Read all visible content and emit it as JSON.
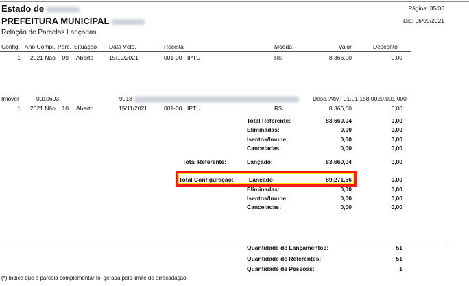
{
  "header": {
    "state_prefix": "Estado de",
    "municipality_prefix": "PREFEITURA MUNICIPAL",
    "report_title": "Relação de Parcelas Lançadas",
    "page": "Página: 35/36",
    "date": "Dia: 06/09/2021"
  },
  "columns": [
    "Config.",
    "Ano Compl.",
    "Parc.",
    "Situação",
    "Data Vcto.",
    "Receita",
    "Moeda",
    "Valor",
    "Desconto"
  ],
  "row1": {
    "config": "1",
    "ano": "2021 Não",
    "parc": "09",
    "situacao": "Aberto",
    "data": "15/10/2021",
    "receita": "001-00",
    "tributo": "IPTU",
    "moeda": "R$",
    "valor": "8.366,00",
    "desconto": "0,00"
  },
  "imovel": {
    "label": "Imóvel",
    "code": "0010603",
    "owner_code": "9918",
    "desc_ativ": "Desc.:Ativ.: 01.01.158.0020.001.000"
  },
  "row2": {
    "config": "1",
    "ano": "2021 Não",
    "parc": "10",
    "situacao": "Aberto",
    "data": "15/11/2021",
    "receita": "001-00",
    "tributo": "IPTU",
    "moeda": "R$",
    "valor": "8.366,00",
    "desconto": "0,00"
  },
  "sub": [
    {
      "label": "Total Referente:",
      "valor": "83.660,04",
      "desconto": "0,00"
    },
    {
      "label": "Eliminadas:",
      "valor": "0,00",
      "desconto": "0,00"
    },
    {
      "label": "Isentos/Imune:",
      "valor": "0,00",
      "desconto": "0,00"
    },
    {
      "label": "Canceladas:",
      "valor": "0,00",
      "desconto": "0,00"
    }
  ],
  "total_ref": {
    "label": "Total Referente:",
    "sub": "Lançado:",
    "valor": "83.660,04",
    "desconto": "0,00"
  },
  "total_config": {
    "label": "Total Configuração:",
    "sub": "Lançado:",
    "valor": "89.271,56",
    "desconto": "0,00",
    "rows": [
      {
        "label": "Eliminadas:",
        "valor": "0,00",
        "desconto": "0,00"
      },
      {
        "label": "Isentos/Imune:",
        "valor": "0,00",
        "desconto": "0,00"
      },
      {
        "label": "Canceladas:",
        "valor": "0,00",
        "desconto": "0,00"
      }
    ]
  },
  "quantities": [
    {
      "label": "Quantidade de Lançamentos:",
      "value": "51"
    },
    {
      "label": "Quantidade de Referentes:",
      "value": "51"
    },
    {
      "label": "Quantidade de Pessoas:",
      "value": "1"
    }
  ],
  "footnote": "(*) Indica que a parcela complementar foi gerada pelo limite de arrecadação."
}
